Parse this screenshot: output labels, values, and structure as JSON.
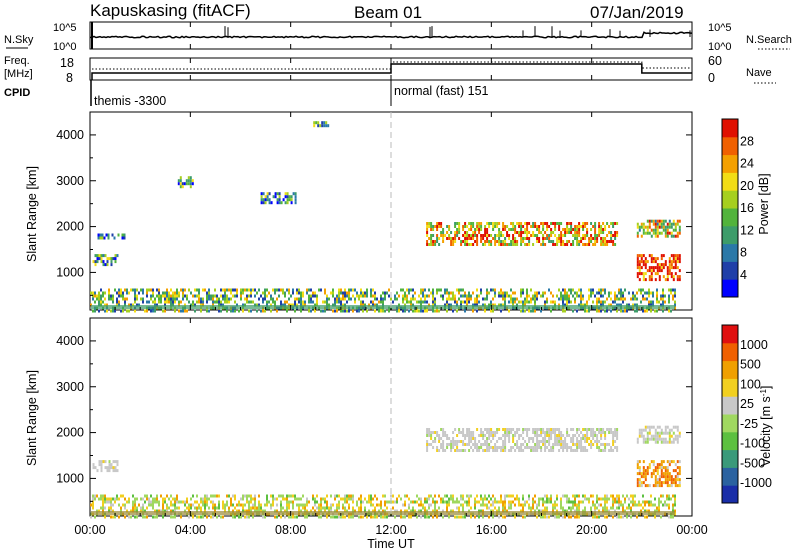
{
  "header": {
    "station": "Kapuskasing (fitACF)",
    "beam": "Beam 01",
    "date": "07/Jan/2019"
  },
  "top_panels": {
    "nsky_label": "N.Sky",
    "nsky_ticks": [
      "10^5",
      "10^0"
    ],
    "nsearch_ticks": [
      "10^5",
      "10^0"
    ],
    "nsearch_label": "N.Search",
    "freq_label_1": "Freq.",
    "freq_label_2": "[MHz]",
    "freq_ticks": [
      "18",
      "8"
    ],
    "nave_ticks": [
      "60",
      "0"
    ],
    "nave_label": "Nave",
    "cpid_label": "CPID",
    "cpid_segments": [
      {
        "start": 0,
        "name": "themis -3300"
      },
      {
        "start": 12,
        "name": "normal (fast) 151"
      }
    ]
  },
  "chart_data": [
    {
      "type": "heatmap",
      "name": "Power",
      "ylabel": "Slant Range [km]",
      "ylim": [
        180,
        4500
      ],
      "yticks": [
        1000,
        2000,
        3000,
        4000
      ],
      "xlim": [
        0,
        24
      ],
      "colorbar": {
        "label": "Power [dB]",
        "ticks": [
          "28",
          "24",
          "20",
          "16",
          "12",
          "8",
          "4"
        ],
        "range": [
          0,
          32
        ],
        "colors": [
          "#0000ff",
          "#1f3fa8",
          "#2a78a8",
          "#3d9c6a",
          "#52b33c",
          "#a6cf1f",
          "#f2dd16",
          "#f4a000",
          "#f06000",
          "#e01000"
        ]
      },
      "echo_regions": [
        {
          "t": [
            0.0,
            23.3
          ],
          "r": [
            180,
            650
          ],
          "intensity": 0.45,
          "note": "near-range scatter"
        },
        {
          "t": [
            0.1,
            1.1
          ],
          "r": [
            1150,
            1400
          ],
          "intensity": 0.35
        },
        {
          "t": [
            0.3,
            1.4
          ],
          "r": [
            1750,
            1850
          ],
          "intensity": 0.25
        },
        {
          "t": [
            3.5,
            4.1
          ],
          "r": [
            2900,
            3100
          ],
          "intensity": 0.3
        },
        {
          "t": [
            6.8,
            8.2
          ],
          "r": [
            2550,
            2750
          ],
          "intensity": 0.3
        },
        {
          "t": [
            8.9,
            9.5
          ],
          "r": [
            4200,
            4300
          ],
          "intensity": 0.35
        },
        {
          "t": [
            13.4,
            21.0
          ],
          "r": [
            1600,
            2100
          ],
          "intensity": 0.7
        },
        {
          "t": [
            21.8,
            23.5
          ],
          "r": [
            850,
            1400
          ],
          "intensity": 0.95
        },
        {
          "t": [
            21.8,
            23.5
          ],
          "r": [
            1800,
            2150
          ],
          "intensity": 0.6
        }
      ]
    },
    {
      "type": "heatmap",
      "name": "Velocity",
      "ylabel": "Slant Range [km]",
      "ylim": [
        180,
        4500
      ],
      "yticks": [
        1000,
        2000,
        3000,
        4000
      ],
      "xlim": [
        0,
        24
      ],
      "xticks": [
        "00:00",
        "04:00",
        "08:00",
        "12:00",
        "16:00",
        "20:00",
        "00:00"
      ],
      "xlabel": "Time UT",
      "colorbar": {
        "label": "Velocity [m s^-1]",
        "label_main": "Velocity [m s",
        "label_sup": "-1",
        "label_end": "]",
        "ticks": [
          "1000",
          "500",
          "100",
          "25",
          "-25",
          "-100",
          "-500",
          "-1000"
        ],
        "colors": [
          "#1a2ea8",
          "#2a62a0",
          "#3a9a7a",
          "#5cc040",
          "#a0d860",
          "#c8c8c8",
          "#f2d020",
          "#f0a000",
          "#f06000",
          "#e01010"
        ]
      },
      "echo_regions": [
        {
          "t": [
            0.0,
            23.3
          ],
          "r": [
            180,
            650
          ],
          "intensity": 0.45,
          "note": "near-range scatter"
        },
        {
          "t": [
            0.1,
            1.1
          ],
          "r": [
            1150,
            1400
          ],
          "intensity": 0.35
        },
        {
          "t": [
            13.4,
            21.0
          ],
          "r": [
            1600,
            2100
          ],
          "intensity": 0.7
        },
        {
          "t": [
            21.8,
            23.5
          ],
          "r": [
            850,
            1400
          ],
          "intensity": 0.95
        },
        {
          "t": [
            21.8,
            23.5
          ],
          "r": [
            1800,
            2150
          ],
          "intensity": 0.6
        }
      ]
    }
  ],
  "cpid_change_time": 12,
  "freq_change_time": 22
}
